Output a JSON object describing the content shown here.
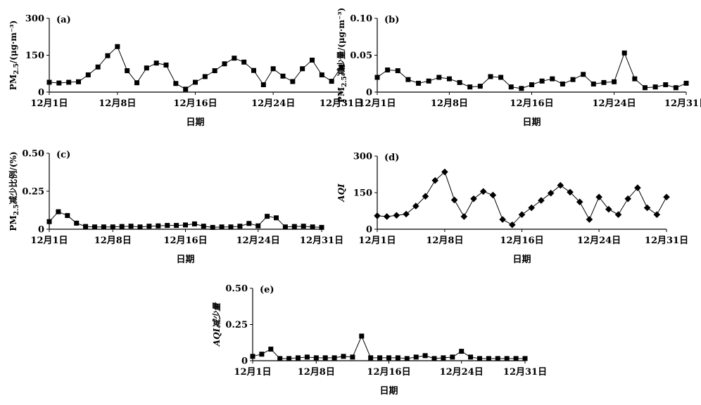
{
  "chart_data": [
    {
      "panel_label": "(a)",
      "type": "line",
      "marker": "square",
      "ylabel": "PM2.5/(μg·m⁻³)",
      "xlabel": "日期",
      "ylim": [
        0,
        300
      ],
      "yticks": [
        "0",
        "150",
        "300"
      ],
      "xlim": [
        1,
        31
      ],
      "xticks": [
        {
          "day": 1,
          "label": "12月1日"
        },
        {
          "day": 8,
          "label": "12月8日"
        },
        {
          "day": 16,
          "label": "12月16日"
        },
        {
          "day": 24,
          "label": "12月24日"
        },
        {
          "day": 31,
          "label": "12月31日"
        }
      ],
      "x": [
        1,
        2,
        3,
        4,
        5,
        6,
        7,
        8,
        9,
        10,
        11,
        12,
        13,
        14,
        15,
        16,
        17,
        18,
        19,
        20,
        21,
        22,
        23,
        24,
        25,
        26,
        27,
        28,
        29,
        30,
        31
      ],
      "values": [
        40,
        37,
        40,
        42,
        70,
        102,
        148,
        185,
        87,
        38,
        98,
        118,
        110,
        35,
        12,
        40,
        63,
        87,
        115,
        138,
        122,
        88,
        30,
        95,
        65,
        43,
        95,
        130,
        70,
        44,
        102
      ]
    },
    {
      "panel_label": "(b)",
      "type": "line",
      "marker": "square",
      "ylabel": "PM2.5减少量/(μg·m⁻³)",
      "xlabel": "日期",
      "ylim": [
        0,
        0.1
      ],
      "yticks": [
        "0",
        "0.05",
        "0.10"
      ],
      "xlim": [
        1,
        31
      ],
      "xticks": [
        {
          "day": 1,
          "label": "12月1日"
        },
        {
          "day": 8,
          "label": "12月8日"
        },
        {
          "day": 16,
          "label": "12月16日"
        },
        {
          "day": 24,
          "label": "12月24日"
        },
        {
          "day": 31,
          "label": "12月31日"
        }
      ],
      "x": [
        1,
        2,
        3,
        4,
        5,
        6,
        7,
        8,
        9,
        10,
        11,
        12,
        13,
        14,
        15,
        16,
        17,
        18,
        19,
        20,
        21,
        22,
        23,
        24,
        25,
        26,
        27,
        28,
        29,
        30,
        31
      ],
      "values": [
        0.02,
        0.03,
        0.029,
        0.017,
        0.012,
        0.015,
        0.02,
        0.018,
        0.013,
        0.007,
        0.008,
        0.021,
        0.02,
        0.007,
        0.005,
        0.01,
        0.015,
        0.018,
        0.011,
        0.017,
        0.024,
        0.011,
        0.013,
        0.014,
        0.053,
        0.018,
        0.006,
        0.007,
        0.01,
        0.006,
        0.012
      ]
    },
    {
      "panel_label": "(c)",
      "type": "line",
      "marker": "square",
      "ylabel": "PM2.5减少比例/(%)",
      "xlabel": "日期",
      "ylim": [
        0,
        0.5
      ],
      "yticks": [
        "0",
        "0.25",
        "0.50"
      ],
      "xlim": [
        1,
        31
      ],
      "xticks": [
        {
          "day": 1,
          "label": "12月1日"
        },
        {
          "day": 8,
          "label": "12月8日"
        },
        {
          "day": 16,
          "label": "12月16日"
        },
        {
          "day": 24,
          "label": "12月24日"
        },
        {
          "day": 31,
          "label": "12月31日"
        }
      ],
      "x": [
        1,
        2,
        3,
        4,
        5,
        6,
        7,
        8,
        9,
        10,
        11,
        12,
        13,
        14,
        15,
        16,
        17,
        18,
        19,
        20,
        21,
        22,
        23,
        24,
        25,
        26,
        27,
        28,
        29,
        30,
        31
      ],
      "values": [
        0.05,
        0.115,
        0.09,
        0.04,
        0.018,
        0.015,
        0.015,
        0.015,
        0.018,
        0.02,
        0.015,
        0.02,
        0.022,
        0.025,
        0.025,
        0.028,
        0.035,
        0.02,
        0.012,
        0.015,
        0.015,
        0.02,
        0.038,
        0.022,
        0.085,
        0.075,
        0.015,
        0.018,
        0.02,
        0.015,
        0.012
      ]
    },
    {
      "panel_label": "(d)",
      "type": "line",
      "marker": "diamond",
      "ylabel": "AQI",
      "xlabel": "日期",
      "ylim": [
        0,
        300
      ],
      "yticks": [
        "0",
        "150",
        "300"
      ],
      "xlim": [
        1,
        31
      ],
      "xticks": [
        {
          "day": 1,
          "label": "12月1日"
        },
        {
          "day": 8,
          "label": "12月8日"
        },
        {
          "day": 16,
          "label": "12月16日"
        },
        {
          "day": 24,
          "label": "12月24日"
        },
        {
          "day": 31,
          "label": "12月31日"
        }
      ],
      "x": [
        1,
        2,
        3,
        4,
        5,
        6,
        7,
        8,
        9,
        10,
        11,
        12,
        13,
        14,
        15,
        16,
        17,
        18,
        19,
        20,
        21,
        22,
        23,
        24,
        25,
        26,
        27,
        28,
        29,
        30,
        31
      ],
      "values": [
        55,
        52,
        57,
        62,
        95,
        135,
        200,
        235,
        120,
        52,
        125,
        155,
        140,
        40,
        18,
        60,
        88,
        118,
        148,
        180,
        152,
        112,
        40,
        132,
        82,
        60,
        125,
        170,
        88,
        60,
        132
      ]
    },
    {
      "panel_label": "(e)",
      "type": "line",
      "marker": "square",
      "ylabel": "AQI减少量",
      "xlabel": "日期",
      "ylim": [
        0,
        0.5
      ],
      "yticks": [
        "0",
        "0.25",
        "0.50"
      ],
      "xlim": [
        1,
        31
      ],
      "xticks": [
        {
          "day": 1,
          "label": "12月1日"
        },
        {
          "day": 8,
          "label": "12月8日"
        },
        {
          "day": 16,
          "label": "12月16日"
        },
        {
          "day": 24,
          "label": "12月24日"
        },
        {
          "day": 31,
          "label": "12月31日"
        }
      ],
      "x": [
        1,
        2,
        3,
        4,
        5,
        6,
        7,
        8,
        9,
        10,
        11,
        12,
        13,
        14,
        15,
        16,
        17,
        18,
        19,
        20,
        21,
        22,
        23,
        24,
        25,
        26,
        27,
        28,
        29,
        30,
        31
      ],
      "values": [
        0.03,
        0.045,
        0.08,
        0.015,
        0.015,
        0.02,
        0.025,
        0.02,
        0.02,
        0.02,
        0.03,
        0.025,
        0.17,
        0.02,
        0.02,
        0.02,
        0.02,
        0.015,
        0.025,
        0.035,
        0.015,
        0.02,
        0.025,
        0.065,
        0.025,
        0.015,
        0.015,
        0.015,
        0.015,
        0.015,
        0.015
      ]
    }
  ]
}
